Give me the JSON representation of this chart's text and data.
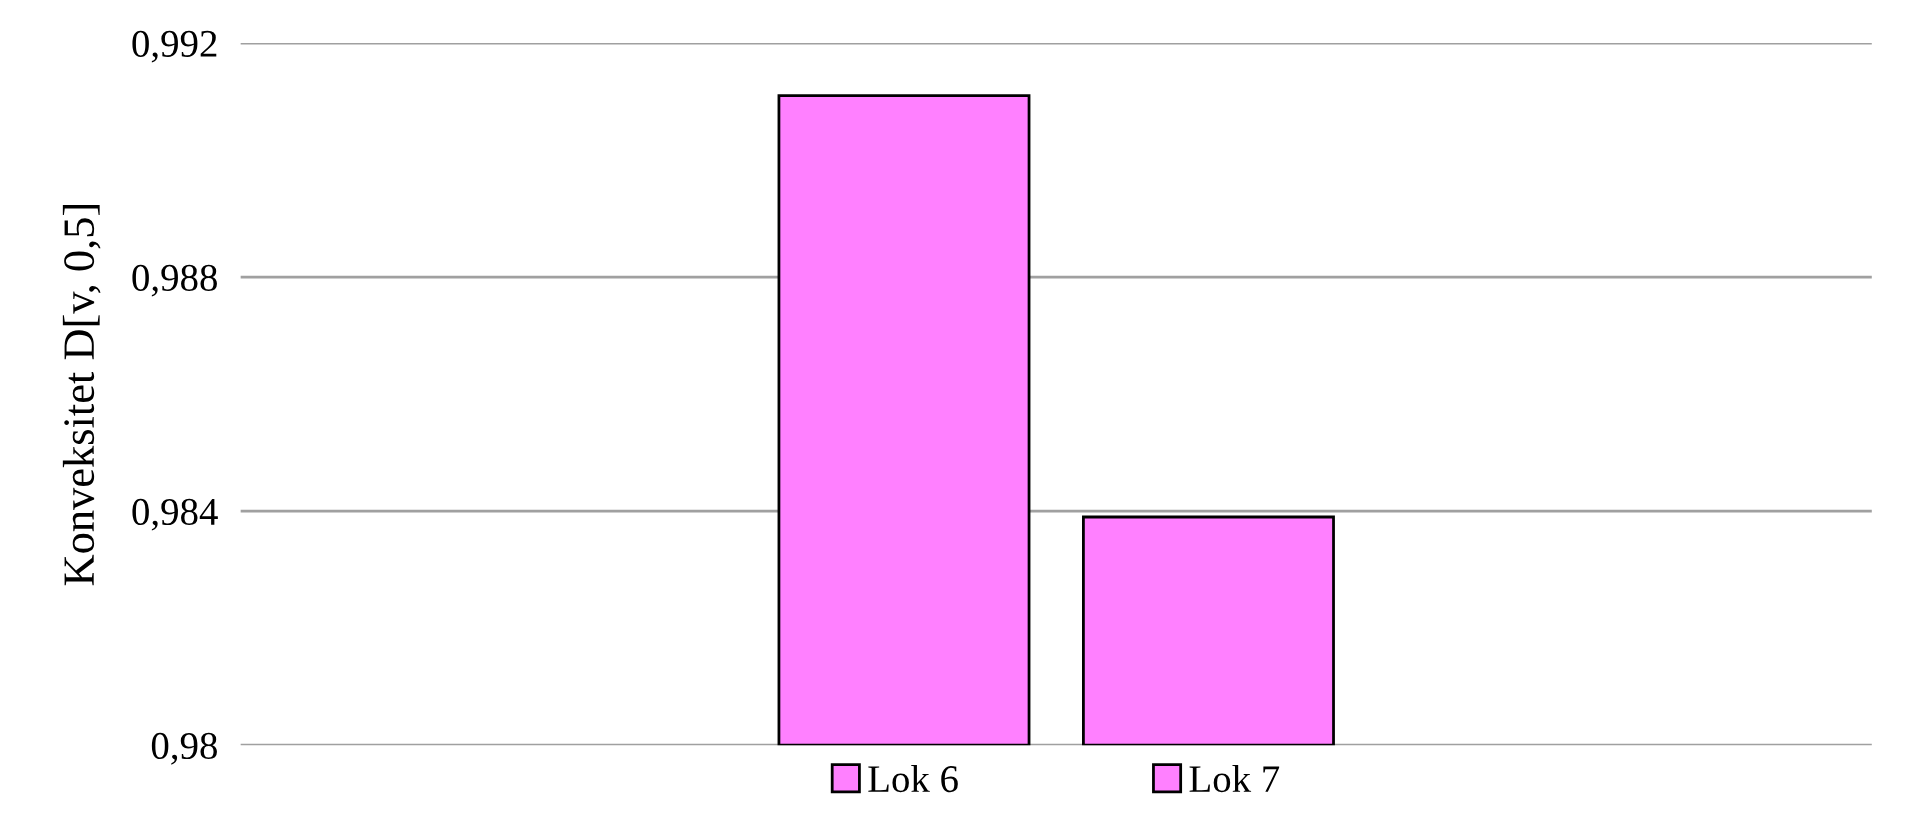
{
  "chart_data": {
    "type": "bar",
    "ylabel": "Konveksitet D[v, 0,5]",
    "categories": [
      null
    ],
    "series": [
      {
        "name": "Lok 6",
        "color": "#ff80ff",
        "values": [
          0.9911
        ]
      },
      {
        "name": "Lok 7",
        "color": "#ff80ff",
        "values": [
          0.9839
        ]
      }
    ],
    "ylim": [
      0.98,
      0.992
    ],
    "yticks": [
      {
        "value": 0.98,
        "label": "0,98"
      },
      {
        "value": 0.984,
        "label": "0,984"
      },
      {
        "value": 0.988,
        "label": "0,988"
      },
      {
        "value": 0.992,
        "label": "0,992"
      }
    ],
    "grid": "y",
    "legend": "bottom"
  }
}
